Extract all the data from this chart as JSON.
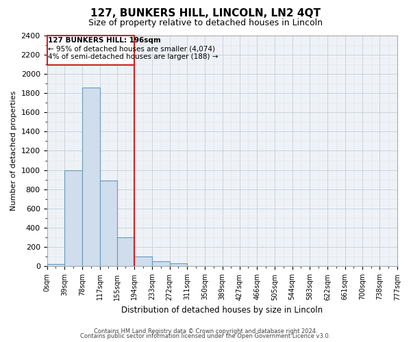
{
  "title": "127, BUNKERS HILL, LINCOLN, LN2 4QT",
  "subtitle": "Size of property relative to detached houses in Lincoln",
  "xlabel": "Distribution of detached houses by size in Lincoln",
  "ylabel": "Number of detached properties",
  "bar_values": [
    25,
    1000,
    1860,
    890,
    300,
    100,
    50,
    30,
    0,
    0,
    0,
    0,
    0,
    0,
    0,
    0,
    0,
    0,
    0,
    0
  ],
  "bin_edges": [
    0,
    39,
    78,
    117,
    155,
    194,
    233,
    272,
    311,
    350,
    389,
    427,
    466,
    505,
    544,
    583,
    622,
    661,
    700,
    738,
    777
  ],
  "xtick_labels": [
    "0sqm",
    "39sqm",
    "78sqm",
    "117sqm",
    "155sqm",
    "194sqm",
    "233sqm",
    "272sqm",
    "311sqm",
    "350sqm",
    "389sqm",
    "427sqm",
    "466sqm",
    "505sqm",
    "544sqm",
    "583sqm",
    "622sqm",
    "661sqm",
    "700sqm",
    "738sqm",
    "777sqm"
  ],
  "ylim": [
    0,
    2400
  ],
  "yticks": [
    0,
    200,
    400,
    600,
    800,
    1000,
    1200,
    1400,
    1600,
    1800,
    2000,
    2200,
    2400
  ],
  "bar_color": "#cfdded",
  "bar_edge_color": "#6699bb",
  "red_line_x": 194,
  "annotation_box_text1": "127 BUNKERS HILL: 196sqm",
  "annotation_box_text2": "← 95% of detached houses are smaller (4,074)",
  "annotation_box_text3": "4% of semi-detached houses are larger (188) →",
  "footer_line1": "Contains HM Land Registry data © Crown copyright and database right 2024.",
  "footer_line2": "Contains public sector information licensed under the Open Government Licence v3.0.",
  "bg_color": "#ffffff",
  "grid_color_major": "#c8d2dc",
  "grid_color_minor": "#dde4ea"
}
